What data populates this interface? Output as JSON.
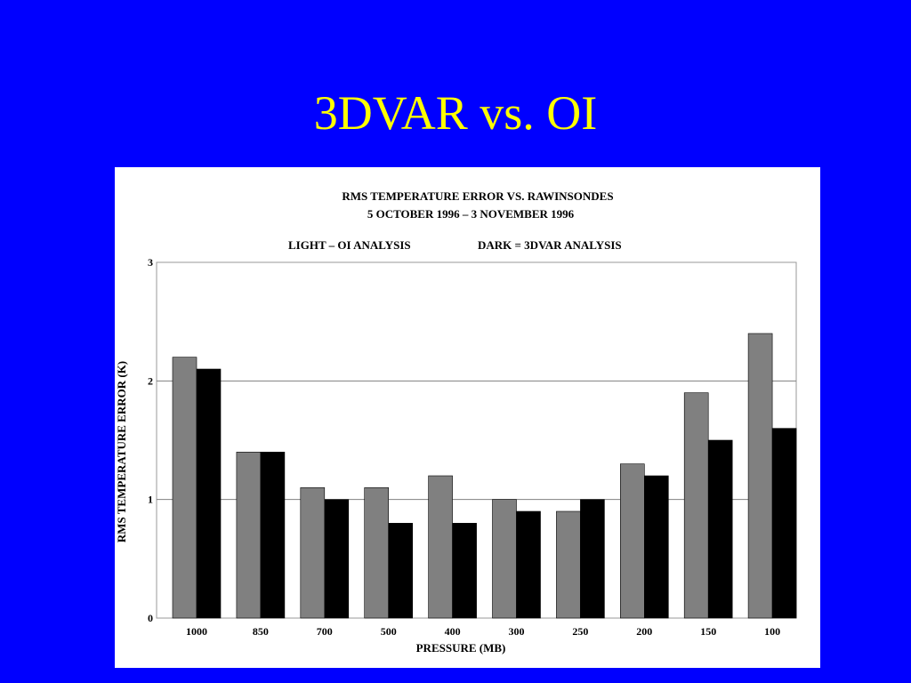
{
  "slide": {
    "title": "3DVAR vs. OI",
    "background_color": "#0000ff",
    "title_color": "#ffff00"
  },
  "chart_data": {
    "type": "bar",
    "title": "RMS TEMPERATURE ERROR VS. RAWINSONDES",
    "subtitle": "5 OCTOBER 1996 – 3 NOVEMBER 1996",
    "legend": [
      "LIGHT – OI ANALYSIS",
      "DARK = 3DVAR ANALYSIS"
    ],
    "xlabel": "PRESSURE (MB)",
    "ylabel": "RMS TEMPERATURE ERROR  (K)",
    "ylim": [
      0,
      3
    ],
    "yticks": [
      "0",
      "1",
      "2",
      "3"
    ],
    "grid": "horizontal",
    "categories": [
      "1000",
      "850",
      "700",
      "500",
      "400",
      "300",
      "250",
      "200",
      "150",
      "100"
    ],
    "series": [
      {
        "name": "OI",
        "color": "#808080",
        "values": [
          2.2,
          1.4,
          1.1,
          1.1,
          1.2,
          1.0,
          0.9,
          1.3,
          1.9,
          2.4
        ]
      },
      {
        "name": "3DVAR",
        "color": "#000000",
        "values": [
          2.1,
          1.4,
          1.0,
          0.8,
          0.8,
          0.9,
          1.0,
          1.2,
          1.5,
          1.6
        ]
      }
    ]
  }
}
